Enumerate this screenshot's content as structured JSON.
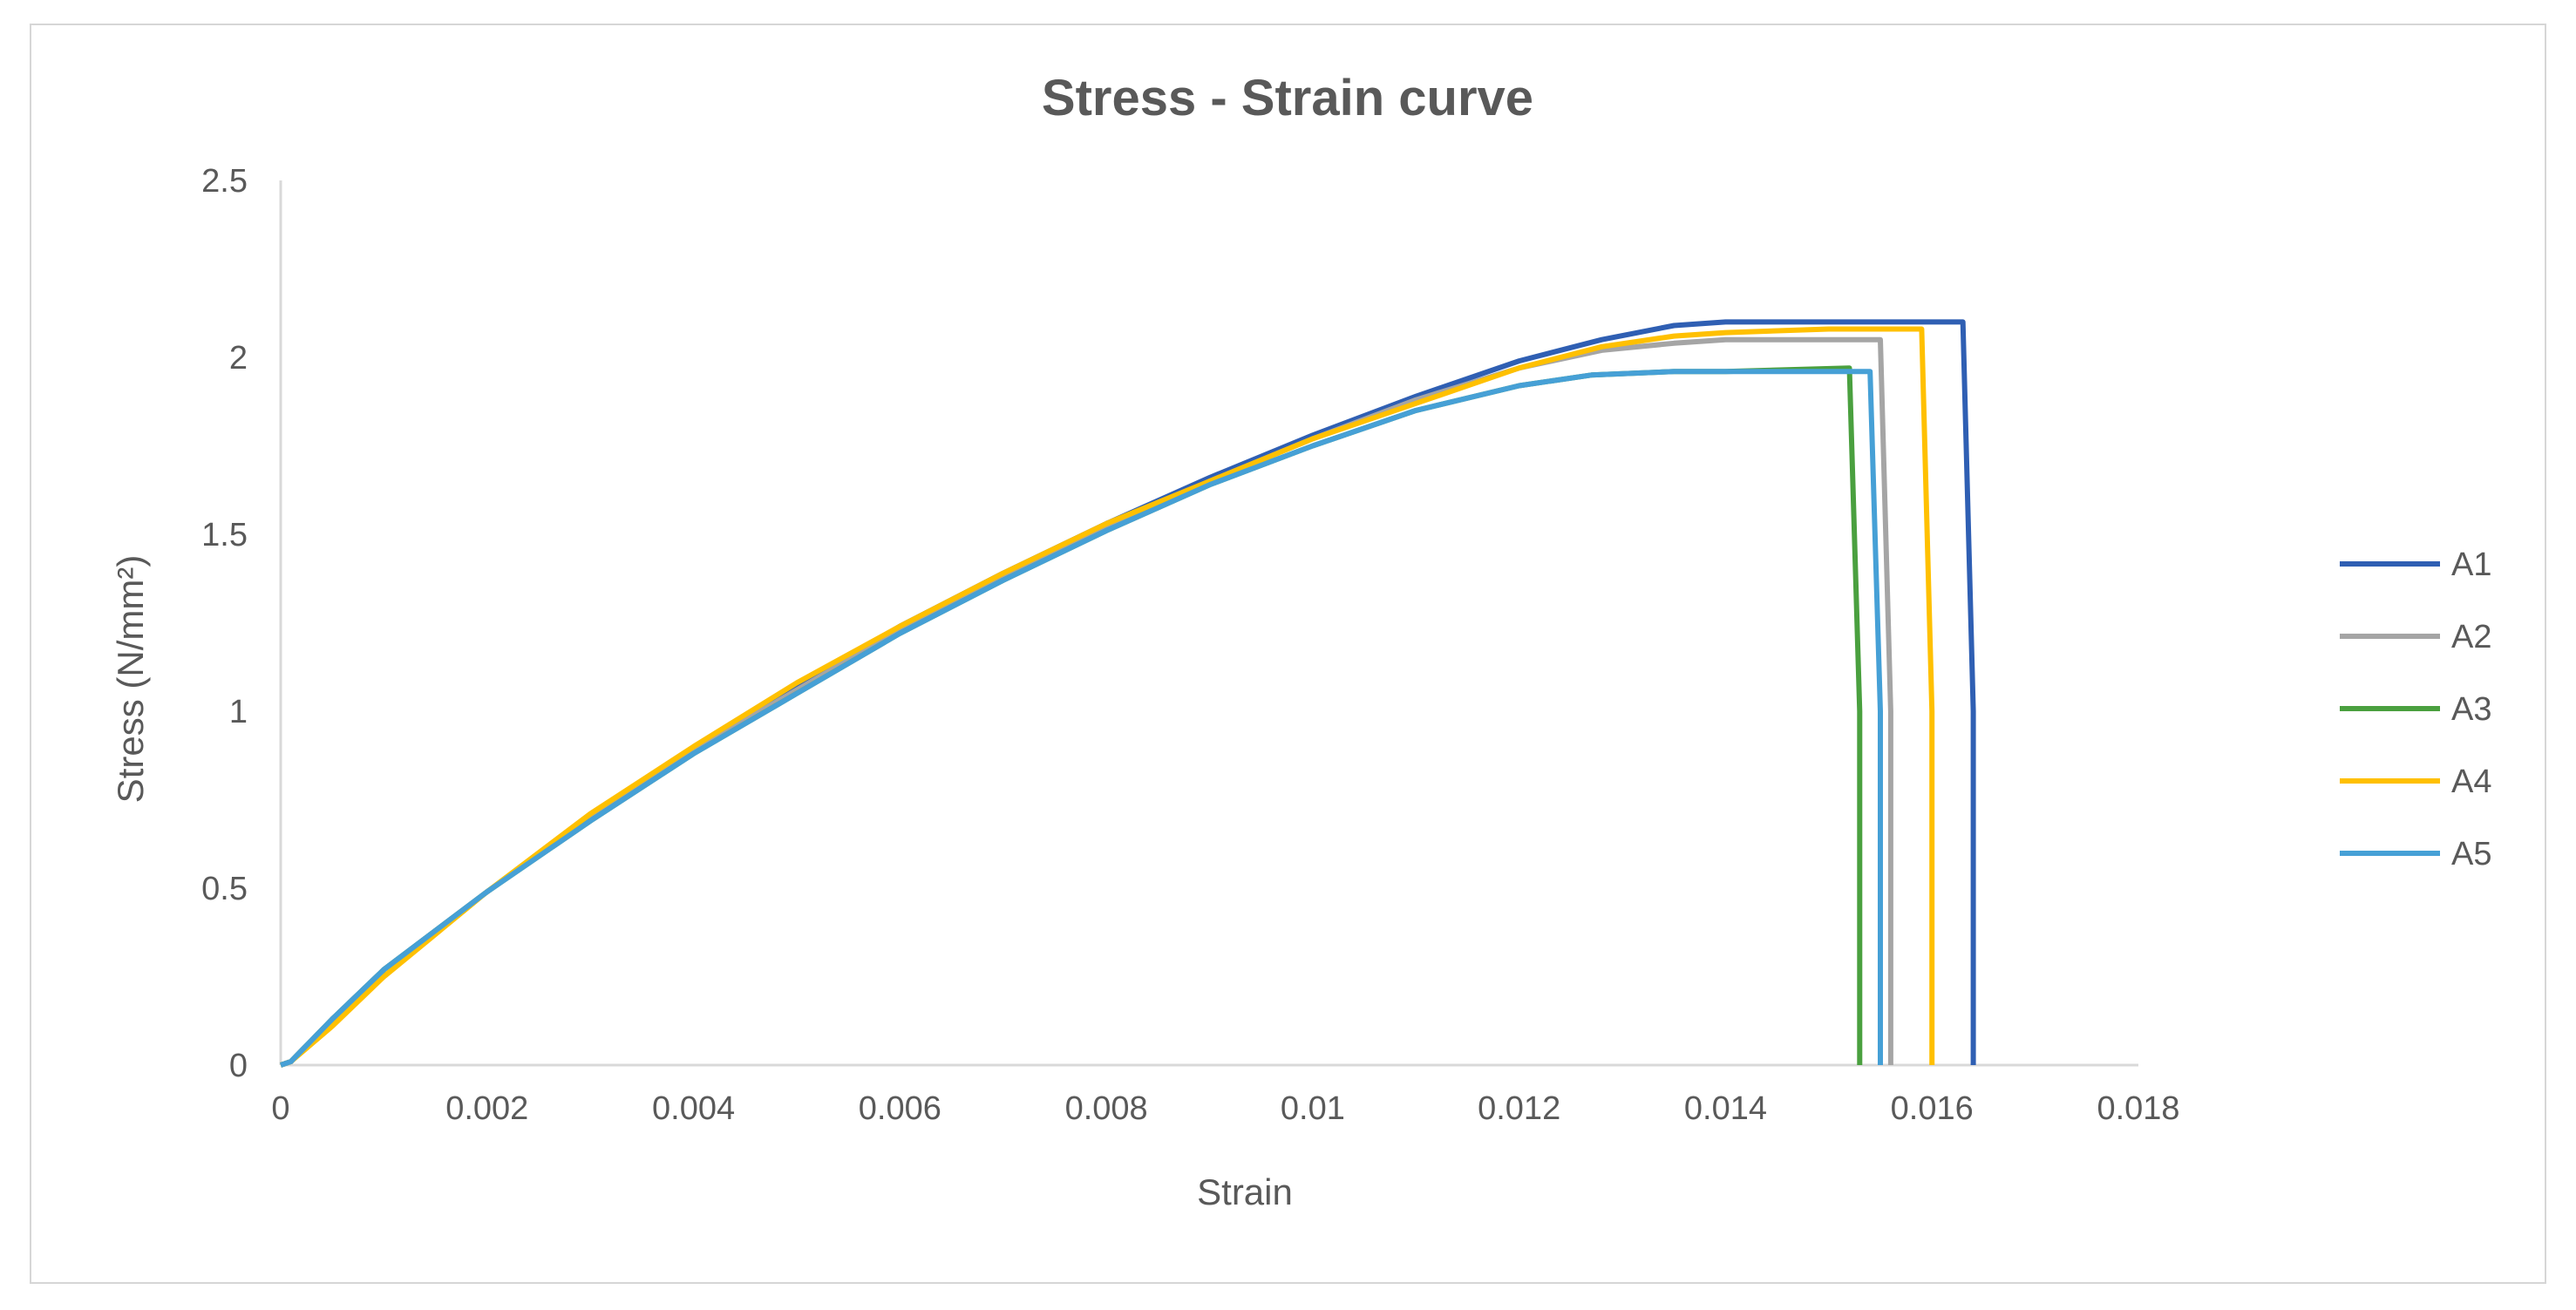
{
  "chart_data": {
    "type": "line",
    "title": "Stress - Strain curve",
    "xlabel": "Strain",
    "ylabel": "Stress (N/mm²)",
    "xlim": [
      0,
      0.018
    ],
    "ylim": [
      0,
      2.5
    ],
    "xticks": [
      "0",
      "0.002",
      "0.004",
      "0.006",
      "0.008",
      "0.01",
      "0.012",
      "0.014",
      "0.016",
      "0.018"
    ],
    "xtick_values": [
      0,
      0.002,
      0.004,
      0.006,
      0.008,
      0.01,
      0.012,
      0.014,
      0.016,
      0.018
    ],
    "yticks": [
      "0",
      "0.5",
      "1",
      "1.5",
      "2",
      "2.5"
    ],
    "ytick_values": [
      0,
      0.5,
      1,
      1.5,
      2,
      2.5
    ],
    "grid": false,
    "legend_position": "right",
    "series": [
      {
        "name": "A1",
        "color": "#2f5fb3",
        "x": [
          0,
          0.0001,
          0.0005,
          0.001,
          0.002,
          0.003,
          0.004,
          0.005,
          0.006,
          0.007,
          0.008,
          0.009,
          0.01,
          0.011,
          0.012,
          0.0128,
          0.0135,
          0.014,
          0.015,
          0.0163,
          0.0164,
          0.0164
        ],
        "y": [
          0,
          0.01,
          0.13,
          0.27,
          0.49,
          0.7,
          0.89,
          1.07,
          1.24,
          1.39,
          1.53,
          1.66,
          1.78,
          1.89,
          1.99,
          2.05,
          2.09,
          2.1,
          2.1,
          2.1,
          1.0,
          0
        ]
      },
      {
        "name": "A2",
        "color": "#a5a5a5",
        "x": [
          0,
          0.0001,
          0.0005,
          0.001,
          0.002,
          0.003,
          0.004,
          0.005,
          0.006,
          0.007,
          0.008,
          0.009,
          0.01,
          0.011,
          0.012,
          0.0128,
          0.0135,
          0.014,
          0.015,
          0.0155,
          0.0156,
          0.0156
        ],
        "y": [
          0,
          0.01,
          0.13,
          0.27,
          0.49,
          0.7,
          0.89,
          1.06,
          1.23,
          1.38,
          1.52,
          1.65,
          1.77,
          1.88,
          1.97,
          2.02,
          2.04,
          2.05,
          2.05,
          2.05,
          1.0,
          0
        ]
      },
      {
        "name": "A3",
        "color": "#4aa03f",
        "x": [
          0,
          0.0001,
          0.0005,
          0.001,
          0.002,
          0.003,
          0.004,
          0.005,
          0.006,
          0.007,
          0.008,
          0.009,
          0.01,
          0.011,
          0.012,
          0.0127,
          0.0135,
          0.014,
          0.0152,
          0.0153,
          0.0153
        ],
        "y": [
          0,
          0.01,
          0.13,
          0.27,
          0.49,
          0.69,
          0.88,
          1.05,
          1.22,
          1.37,
          1.51,
          1.64,
          1.75,
          1.85,
          1.92,
          1.95,
          1.96,
          1.96,
          1.97,
          1.0,
          0
        ]
      },
      {
        "name": "A4",
        "color": "#ffc000",
        "x": [
          0,
          0.0001,
          0.0005,
          0.001,
          0.002,
          0.003,
          0.004,
          0.005,
          0.006,
          0.007,
          0.008,
          0.009,
          0.01,
          0.011,
          0.012,
          0.0128,
          0.0135,
          0.014,
          0.015,
          0.0159,
          0.016,
          0.016
        ],
        "y": [
          0,
          0.01,
          0.11,
          0.25,
          0.49,
          0.71,
          0.9,
          1.08,
          1.24,
          1.39,
          1.53,
          1.65,
          1.77,
          1.87,
          1.97,
          2.03,
          2.06,
          2.07,
          2.08,
          2.08,
          1.0,
          0
        ]
      },
      {
        "name": "A5",
        "color": "#46a0d6",
        "x": [
          0,
          0.0001,
          0.0005,
          0.001,
          0.002,
          0.003,
          0.004,
          0.005,
          0.006,
          0.007,
          0.008,
          0.009,
          0.01,
          0.011,
          0.012,
          0.0127,
          0.0135,
          0.014,
          0.0154,
          0.0155,
          0.0155
        ],
        "y": [
          0,
          0.01,
          0.13,
          0.27,
          0.49,
          0.69,
          0.88,
          1.05,
          1.22,
          1.37,
          1.51,
          1.64,
          1.75,
          1.85,
          1.92,
          1.95,
          1.96,
          1.96,
          1.96,
          1.0,
          0
        ]
      }
    ]
  }
}
